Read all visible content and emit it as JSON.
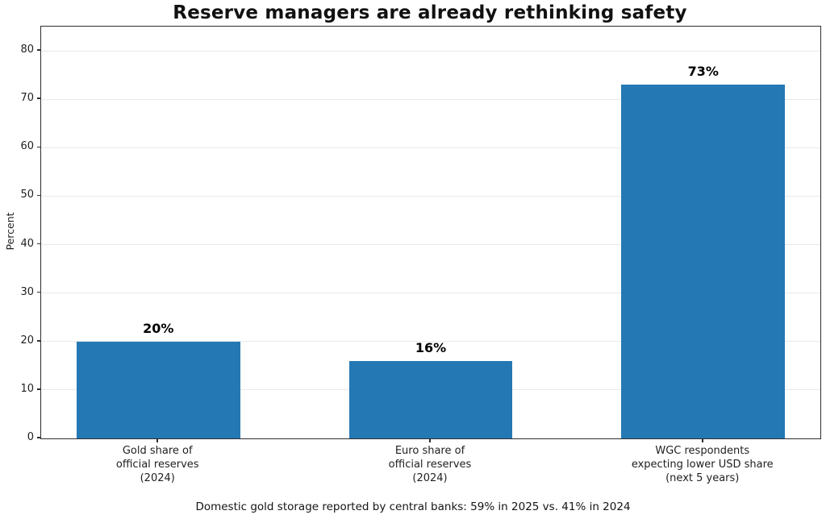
{
  "title": "Reserve managers are already rethinking safety",
  "footnote": "Domestic gold storage reported by central banks: 59% in 2025 vs. 41% in 2024",
  "chart_data": {
    "type": "bar",
    "title": "Reserve managers are already rethinking safety",
    "xlabel": "",
    "ylabel": "Percent",
    "categories": [
      "Gold share of\nofficial reserves\n(2024)",
      "Euro share of\nofficial reserves\n(2024)",
      "WGC respondents\nexpecting lower USD share\n(next 5 years)"
    ],
    "values": [
      20,
      16,
      73
    ],
    "bar_labels": [
      "20%",
      "16%",
      "73%"
    ],
    "ylim": [
      0,
      85
    ],
    "yticks": [
      0,
      10,
      20,
      30,
      40,
      50,
      60,
      70,
      80
    ],
    "grid": "horizontal",
    "legend": "none",
    "bar_color": "#2478b4",
    "annotation": "Domestic gold storage reported by central banks: 59% in 2025 vs. 41% in 2024"
  }
}
